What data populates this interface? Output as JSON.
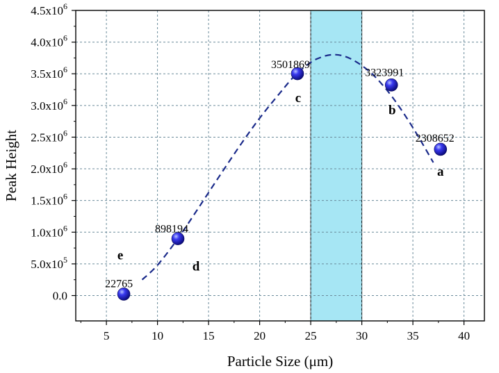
{
  "chart_data": {
    "type": "scatter",
    "title": "",
    "xlabel": "Particle Size (μm)",
    "ylabel": "Peak Height",
    "xlim": [
      2,
      42
    ],
    "ylim": [
      -400000,
      4500000
    ],
    "grid": true,
    "x_ticks": [
      5,
      10,
      15,
      20,
      25,
      30,
      35,
      40
    ],
    "y_ticks": [
      {
        "value": 0,
        "mantissa": "0.0",
        "exp": ""
      },
      {
        "value": 500000,
        "mantissa": "5.0x10",
        "exp": "5"
      },
      {
        "value": 1000000,
        "mantissa": "1.0x10",
        "exp": "6"
      },
      {
        "value": 1500000,
        "mantissa": "1.5x10",
        "exp": "6"
      },
      {
        "value": 2000000,
        "mantissa": "2.0x10",
        "exp": "6"
      },
      {
        "value": 2500000,
        "mantissa": "2.5x10",
        "exp": "6"
      },
      {
        "value": 3000000,
        "mantissa": "3.0x10",
        "exp": "6"
      },
      {
        "value": 3500000,
        "mantissa": "3.5x10",
        "exp": "6"
      },
      {
        "value": 4000000,
        "mantissa": "4.0x10",
        "exp": "6"
      },
      {
        "value": 4500000,
        "mantissa": "4.5x10",
        "exp": "6"
      }
    ],
    "points": [
      {
        "x": 6.7,
        "y": 22765,
        "label": "22765",
        "letter": "e"
      },
      {
        "x": 12.0,
        "y": 898194,
        "label": "898194",
        "letter": "d"
      },
      {
        "x": 23.7,
        "y": 3501869,
        "label": "3501869",
        "letter": "c"
      },
      {
        "x": 32.9,
        "y": 3323991,
        "label": "3323991",
        "letter": "b"
      },
      {
        "x": 37.7,
        "y": 2308652,
        "label": "2308652",
        "letter": "a"
      }
    ],
    "fit_curve": {
      "style": "dashed",
      "color": "#1a2a8a",
      "x": [
        8.5,
        10,
        12,
        14,
        16,
        18,
        20,
        22,
        23.5,
        25,
        26,
        27,
        28,
        29,
        30,
        31,
        32,
        33,
        34,
        35,
        36,
        37
      ],
      "y": [
        250000,
        480000,
        900000,
        1380000,
        1870000,
        2350000,
        2800000,
        3200000,
        3480000,
        3680000,
        3760000,
        3800000,
        3790000,
        3730000,
        3630000,
        3500000,
        3330000,
        3130000,
        2900000,
        2650000,
        2380000,
        2100000
      ]
    },
    "highlight_band": {
      "x_start": 25,
      "x_end": 30,
      "color": "#a6e6f4"
    },
    "marker_color": "#1c1cd6"
  }
}
